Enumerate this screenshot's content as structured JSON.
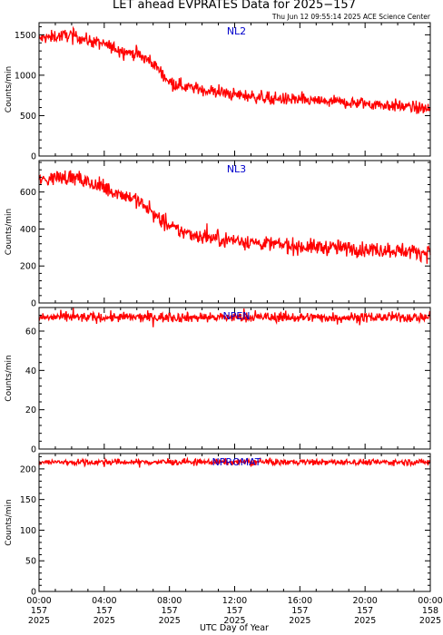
{
  "title": "LET ahead EVPRATES Data for 2025−157",
  "timestamp": "Thu Jun 12 09:55:14 2025 ACE Science Center",
  "xlabel": "UTC Day of Year",
  "colors": {
    "series": "#ff0000",
    "panel_label": "#0000cc",
    "axes": "#000000",
    "background": "#ffffff"
  },
  "chart_data": [
    {
      "type": "line",
      "panel": "NL2",
      "ylabel": "Counts/min",
      "ylim": [
        0,
        1650
      ],
      "yticks": [
        0,
        500,
        1000,
        1500
      ],
      "x": [
        0,
        1,
        2,
        3,
        4,
        5,
        6,
        7,
        8,
        9,
        10,
        11,
        12,
        14,
        16,
        18,
        20,
        22,
        24
      ],
      "y": [
        1450,
        1480,
        1500,
        1430,
        1380,
        1310,
        1260,
        1150,
        920,
        860,
        820,
        790,
        760,
        720,
        690,
        670,
        650,
        620,
        580
      ],
      "noise": 55
    },
    {
      "type": "line",
      "panel": "NL3",
      "ylabel": "Counts/min",
      "ylim": [
        0,
        770
      ],
      "yticks": [
        0,
        200,
        400,
        600
      ],
      "x": [
        0,
        1,
        2,
        3,
        4,
        5,
        6,
        7,
        8,
        9,
        10,
        11,
        12,
        14,
        16,
        18,
        20,
        22,
        24
      ],
      "y": [
        660,
        680,
        680,
        650,
        620,
        590,
        560,
        480,
        410,
        380,
        360,
        345,
        340,
        320,
        305,
        300,
        290,
        285,
        270
      ],
      "noise": 30
    },
    {
      "type": "line",
      "panel": "NPEN",
      "ylabel": "Counts/min",
      "ylim": [
        0,
        72
      ],
      "yticks": [
        0,
        20,
        40,
        60
      ],
      "x": [
        0,
        24
      ],
      "y": [
        67,
        67
      ],
      "noise": 1.8
    },
    {
      "type": "line",
      "panel": "NPROMAT",
      "ylabel": "Counts/min",
      "ylim": [
        0,
        225
      ],
      "yticks": [
        0,
        50,
        100,
        150,
        200
      ],
      "x": [
        0,
        24
      ],
      "y": [
        211,
        211
      ],
      "noise": 3.5
    }
  ],
  "xticks": [
    {
      "hour": 0,
      "time": "00:00",
      "doy": "157",
      "year": "2025"
    },
    {
      "hour": 4,
      "time": "04:00",
      "doy": "157",
      "year": "2025"
    },
    {
      "hour": 8,
      "time": "08:00",
      "doy": "157",
      "year": "2025"
    },
    {
      "hour": 12,
      "time": "12:00",
      "doy": "157",
      "year": "2025"
    },
    {
      "hour": 16,
      "time": "16:00",
      "doy": "157",
      "year": "2025"
    },
    {
      "hour": 20,
      "time": "20:00",
      "doy": "157",
      "year": "2025"
    },
    {
      "hour": 24,
      "time": "00:00",
      "doy": "158",
      "year": "2025"
    }
  ]
}
